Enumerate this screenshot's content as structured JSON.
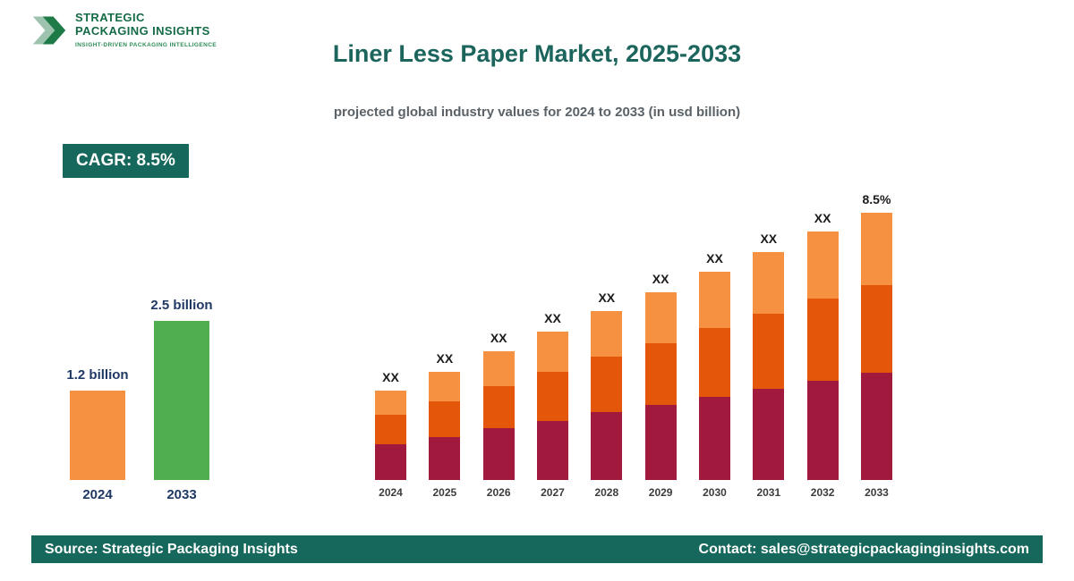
{
  "brand": {
    "name_line1": "STRATEGIC",
    "name_line2": "PACKAGING INSIGHTS",
    "tagline": "INSIGHT-DRIVEN PACKAGING INTELLIGENCE"
  },
  "header": {
    "title": "Liner Less Paper Market, 2025-2033",
    "subtitle": "projected global industry values for 2024 to 2033 (in usd billion)"
  },
  "badge": {
    "label": "CAGR: 8.5%"
  },
  "colors": {
    "brand_green": "#17685C",
    "title_green": "#1B655C",
    "navy_label": "#203864",
    "maroon": "#A2193E",
    "dark_orange": "#E4560A",
    "light_orange": "#F59140",
    "summary_green": "#50AE4E"
  },
  "chart_data": [
    {
      "type": "bar",
      "name": "summary-growth",
      "categories": [
        "2024",
        "2033"
      ],
      "values": [
        1.2,
        2.5
      ],
      "value_labels": [
        "1.2 billion",
        "2.5 billion"
      ],
      "bar_colors": [
        "#F59140",
        "#50AE4E"
      ],
      "unit": "usd billion",
      "legend": "none",
      "axes": "none"
    },
    {
      "type": "bar",
      "subtype": "stacked",
      "name": "projection-2024-2033",
      "categories": [
        "2024",
        "2025",
        "2026",
        "2027",
        "2028",
        "2029",
        "2030",
        "2031",
        "2032",
        "2033"
      ],
      "bar_labels": [
        "XX",
        "XX",
        "XX",
        "XX",
        "XX",
        "XX",
        "XX",
        "XX",
        "XX",
        "8.5%"
      ],
      "values_estimated": [
        1.2,
        1.34,
        1.49,
        1.63,
        1.78,
        1.92,
        2.07,
        2.21,
        2.36,
        2.5
      ],
      "segment_fractions_bottom_to_top": [
        0.4,
        0.33,
        0.27
      ],
      "segment_colors_bottom_to_top": [
        "#A2193E",
        "#E4560A",
        "#F59140"
      ],
      "unit": "usd billion",
      "legend": "none",
      "axes": "none"
    }
  ],
  "footer": {
    "source": "Source: Strategic Packaging Insights",
    "contact": "Contact: sales@strategicpackaginginsights.com"
  }
}
